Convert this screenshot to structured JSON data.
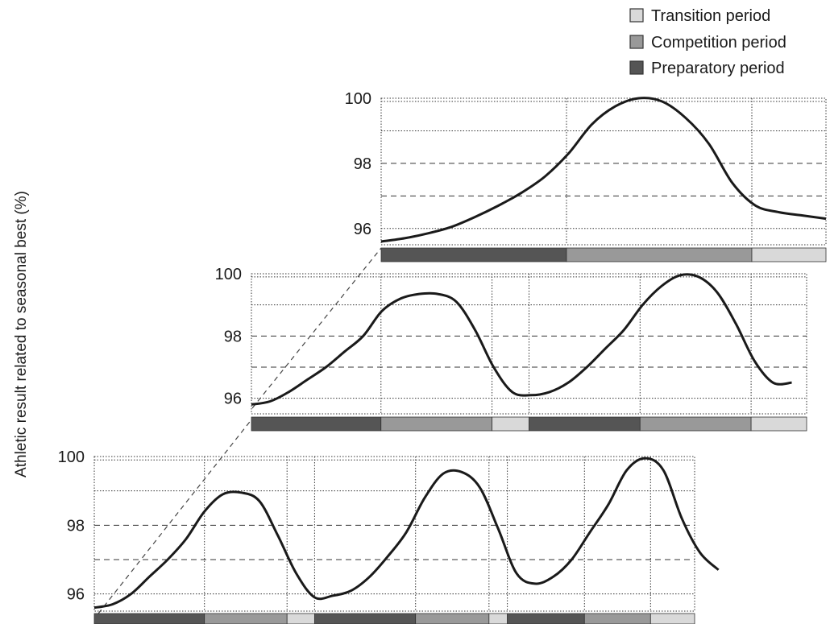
{
  "chart_data": {
    "type": "line",
    "ylabel": "Athletic result related to seasonal best (%)",
    "ylim": [
      95.5,
      100
    ],
    "y_ticks": [
      "100",
      "98",
      "96"
    ],
    "grid": "dashed horizontal at 97 and 98, dotted at 99, 99.9 and 96; dotted vertical at period boundaries",
    "legend": {
      "placement": "top-right",
      "items": [
        {
          "label": "Transition period",
          "color": "#d9d9d9"
        },
        {
          "label": "Competition period",
          "color": "#999999"
        },
        {
          "label": "Preparatory period",
          "color": "#555555"
        }
      ]
    },
    "panels": [
      {
        "name": "single-cycle",
        "periods": [
          {
            "type": "preparatory",
            "length": 5
          },
          {
            "type": "competition",
            "length": 5
          },
          {
            "type": "transition",
            "length": 2
          }
        ],
        "curve": [
          [
            0,
            95.6
          ],
          [
            1,
            95.7
          ],
          [
            2,
            95.85
          ],
          [
            3,
            96.05
          ],
          [
            4,
            96.35
          ],
          [
            5,
            96.7
          ],
          [
            6,
            97.1
          ],
          [
            7,
            97.6
          ],
          [
            8,
            98.3
          ],
          [
            9,
            99.2
          ],
          [
            10,
            99.75
          ],
          [
            11,
            100
          ],
          [
            12,
            99.9
          ],
          [
            13,
            99.4
          ],
          [
            14,
            98.6
          ],
          [
            15,
            97.4
          ],
          [
            16,
            96.7
          ],
          [
            17,
            96.5
          ],
          [
            18,
            96.4
          ],
          [
            19,
            96.3
          ]
        ],
        "x_range": [
          0,
          19
        ]
      },
      {
        "name": "double-cycle",
        "periods": [
          {
            "type": "preparatory",
            "length": 7
          },
          {
            "type": "competition",
            "length": 6
          },
          {
            "type": "transition",
            "length": 2
          },
          {
            "type": "preparatory",
            "length": 6
          },
          {
            "type": "competition",
            "length": 6
          },
          {
            "type": "transition",
            "length": 3
          }
        ],
        "curve": [
          [
            0,
            95.8
          ],
          [
            1,
            95.9
          ],
          [
            2,
            96.2
          ],
          [
            3,
            96.6
          ],
          [
            4,
            97.0
          ],
          [
            5,
            97.5
          ],
          [
            6,
            98.0
          ],
          [
            7,
            98.8
          ],
          [
            8,
            99.2
          ],
          [
            9,
            99.35
          ],
          [
            10,
            99.35
          ],
          [
            11,
            99.1
          ],
          [
            12,
            98.2
          ],
          [
            13,
            97.0
          ],
          [
            14,
            96.2
          ],
          [
            15,
            96.1
          ],
          [
            16,
            96.2
          ],
          [
            17,
            96.5
          ],
          [
            18,
            97.0
          ],
          [
            19,
            97.6
          ],
          [
            20,
            98.2
          ],
          [
            21,
            99.0
          ],
          [
            22,
            99.6
          ],
          [
            23,
            99.95
          ],
          [
            24,
            99.9
          ],
          [
            25,
            99.4
          ],
          [
            26,
            98.4
          ],
          [
            27,
            97.2
          ],
          [
            28,
            96.5
          ],
          [
            29,
            96.5
          ]
        ],
        "x_range": [
          0,
          29.8
        ]
      },
      {
        "name": "triple-cycle",
        "periods": [
          {
            "type": "preparatory",
            "length": 6
          },
          {
            "type": "competition",
            "length": 4.5
          },
          {
            "type": "transition",
            "length": 1.5
          },
          {
            "type": "preparatory",
            "length": 5.5
          },
          {
            "type": "competition",
            "length": 4
          },
          {
            "type": "transition",
            "length": 1
          },
          {
            "type": "preparatory",
            "length": 4.2
          },
          {
            "type": "competition",
            "length": 3.6
          },
          {
            "type": "transition",
            "length": 2.4
          }
        ],
        "curve": [
          [
            0,
            95.6
          ],
          [
            1,
            95.7
          ],
          [
            2,
            96.0
          ],
          [
            3,
            96.5
          ],
          [
            4,
            97.0
          ],
          [
            5,
            97.6
          ],
          [
            6,
            98.4
          ],
          [
            7,
            98.9
          ],
          [
            8,
            98.95
          ],
          [
            9,
            98.7
          ],
          [
            10,
            97.7
          ],
          [
            11,
            96.6
          ],
          [
            12,
            95.9
          ],
          [
            13,
            95.95
          ],
          [
            14,
            96.1
          ],
          [
            15,
            96.5
          ],
          [
            16,
            97.1
          ],
          [
            17,
            97.8
          ],
          [
            18,
            98.8
          ],
          [
            19,
            99.5
          ],
          [
            20,
            99.55
          ],
          [
            21,
            99.1
          ],
          [
            22,
            97.9
          ],
          [
            23,
            96.6
          ],
          [
            24,
            96.3
          ],
          [
            25,
            96.5
          ],
          [
            26,
            97.0
          ],
          [
            27,
            97.8
          ],
          [
            28,
            98.6
          ],
          [
            29,
            99.6
          ],
          [
            30,
            99.95
          ],
          [
            31,
            99.6
          ],
          [
            32,
            98.2
          ],
          [
            33,
            97.2
          ],
          [
            34,
            96.7
          ]
        ],
        "x_range": [
          0,
          32.7
        ]
      }
    ]
  }
}
